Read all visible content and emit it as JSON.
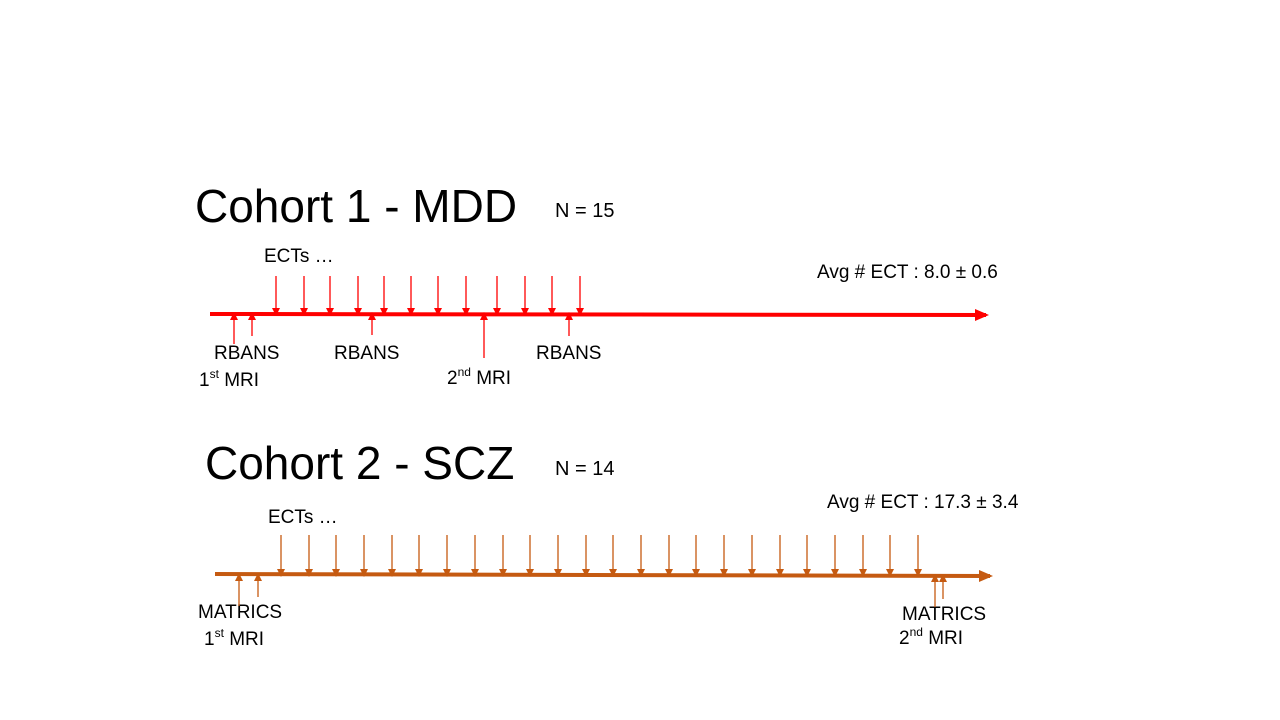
{
  "colors": {
    "cohort1": "#ff0000",
    "cohort2": "#c55a11"
  },
  "cohort1": {
    "title": "Cohort 1 - MDD",
    "n": "N = 15",
    "ects_label": "ECTs …",
    "avg_label": "Avg # ECT : 8.0 ± 0.6",
    "rbans_1": "RBANS",
    "rbans_2": "RBANS",
    "rbans_3": "RBANS",
    "mri_1": {
      "num": "1",
      "sup": "st",
      "rest": " MRI"
    },
    "mri_2": {
      "num": "2",
      "sup": "nd",
      "rest": " MRI"
    }
  },
  "cohort2": {
    "title": "Cohort 2 - SCZ",
    "n": "N = 14",
    "ects_label": "ECTs …",
    "avg_label": "Avg # ECT : 17.3 ± 3.4",
    "matrics_1": "MATRICS",
    "matrics_2": "MATRICS",
    "mri_1": {
      "num": "1",
      "sup": "st",
      "rest": " MRI"
    },
    "mri_2": {
      "num": "2",
      "sup": "nd",
      "rest": " MRI"
    }
  }
}
